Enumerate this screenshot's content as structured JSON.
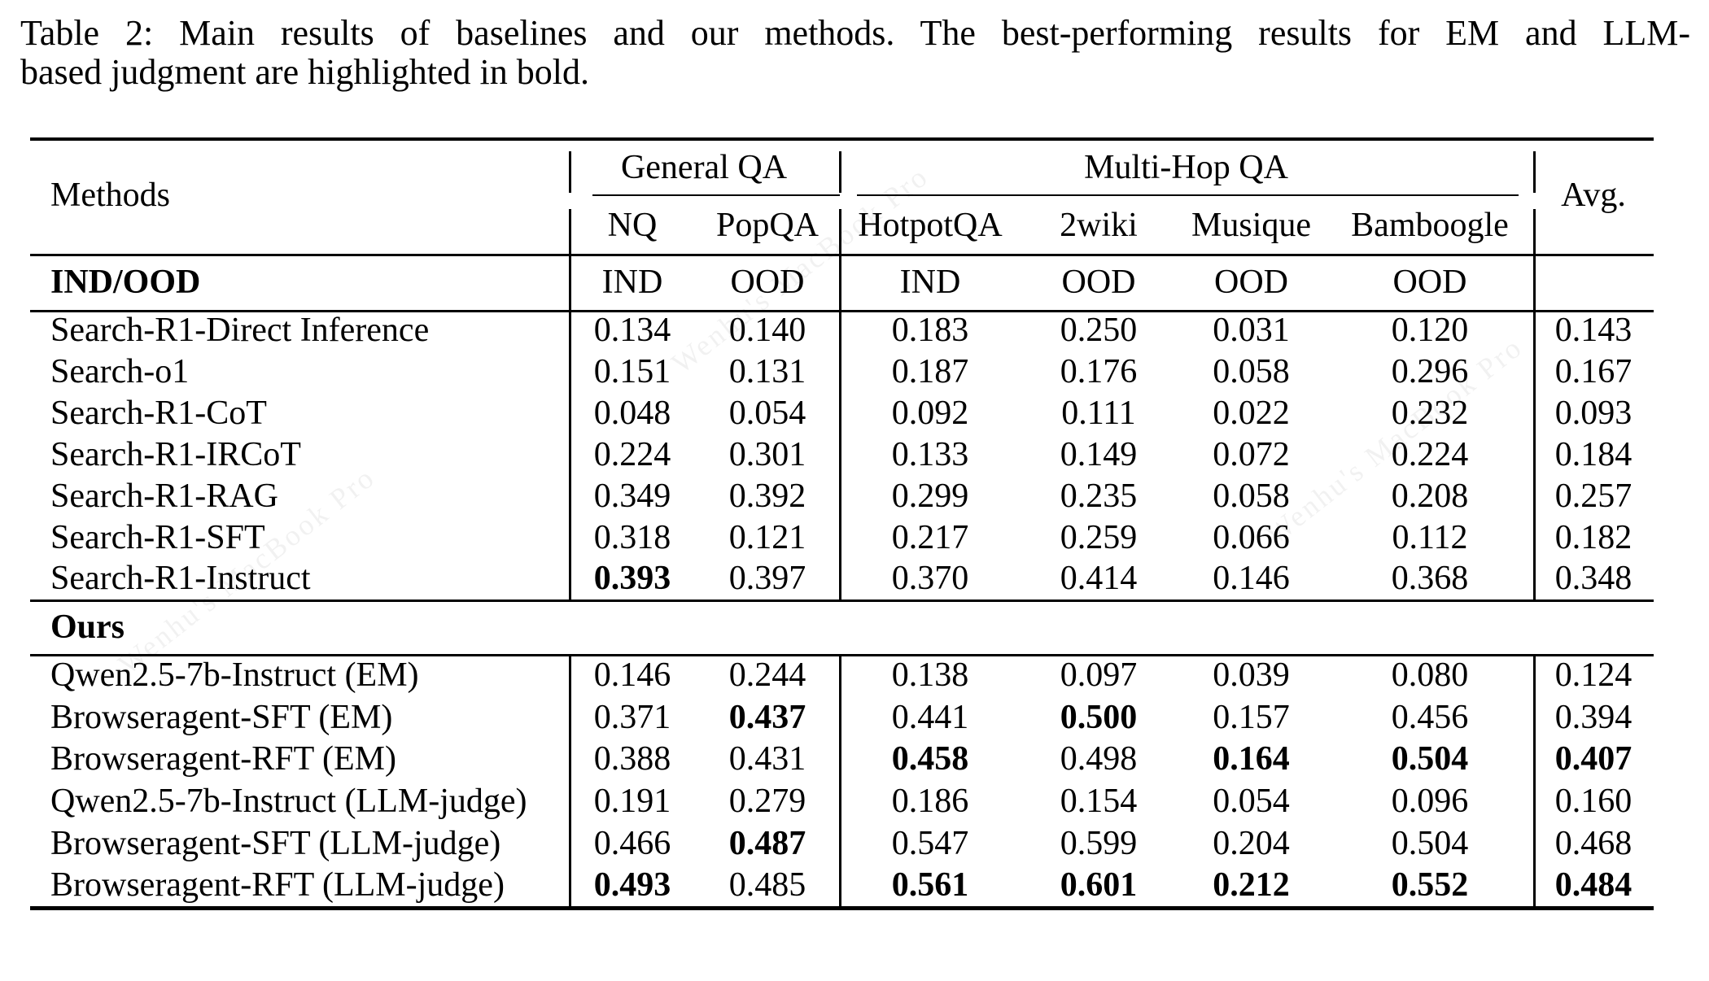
{
  "caption": {
    "line1": "Table 2: Main results of baselines and our methods. The best-performing results for EM and LLM-",
    "line2": "based judgment are highlighted in bold."
  },
  "watermark": "Wenhu's MacBook Pro",
  "table": {
    "methods_header": "Methods",
    "avg_header": "Avg.",
    "groups": [
      {
        "label": "General QA"
      },
      {
        "label": "Multi-Hop QA"
      }
    ],
    "columns": [
      "NQ",
      "PopQA",
      "HotpotQA",
      "2wiki",
      "Musique",
      "Bamboogle"
    ],
    "ind_ood": {
      "label": "IND/OOD",
      "values": [
        "IND",
        "OOD",
        "IND",
        "OOD",
        "OOD",
        "OOD"
      ]
    },
    "sections": [
      {
        "label": "",
        "rows": [
          {
            "method": "Search-R1-Direct Inference",
            "values": [
              "0.134",
              "0.140",
              "0.183",
              "0.250",
              "0.031",
              "0.120",
              "0.143"
            ],
            "bold": []
          },
          {
            "method": "Search-o1",
            "values": [
              "0.151",
              "0.131",
              "0.187",
              "0.176",
              "0.058",
              "0.296",
              "0.167"
            ],
            "bold": []
          },
          {
            "method": "Search-R1-CoT",
            "values": [
              "0.048",
              "0.054",
              "0.092",
              "0.111",
              "0.022",
              "0.232",
              "0.093"
            ],
            "bold": []
          },
          {
            "method": "Search-R1-IRCoT",
            "values": [
              "0.224",
              "0.301",
              "0.133",
              "0.149",
              "0.072",
              "0.224",
              "0.184"
            ],
            "bold": []
          },
          {
            "method": "Search-R1-RAG",
            "values": [
              "0.349",
              "0.392",
              "0.299",
              "0.235",
              "0.058",
              "0.208",
              "0.257"
            ],
            "bold": []
          },
          {
            "method": "Search-R1-SFT",
            "values": [
              "0.318",
              "0.121",
              "0.217",
              "0.259",
              "0.066",
              "0.112",
              "0.182"
            ],
            "bold": []
          },
          {
            "method": "Search-R1-Instruct",
            "values": [
              "0.393",
              "0.397",
              "0.370",
              "0.414",
              "0.146",
              "0.368",
              "0.348"
            ],
            "bold": [
              0
            ]
          }
        ]
      },
      {
        "label": "Ours",
        "rows": [
          {
            "method": "Qwen2.5-7b-Instruct (EM)",
            "values": [
              "0.146",
              "0.244",
              "0.138",
              "0.097",
              "0.039",
              "0.080",
              "0.124"
            ],
            "bold": []
          },
          {
            "method": "Browseragent-SFT (EM)",
            "values": [
              "0.371",
              "0.437",
              "0.441",
              "0.500",
              "0.157",
              "0.456",
              "0.394"
            ],
            "bold": [
              1,
              3
            ]
          },
          {
            "method": "Browseragent-RFT (EM)",
            "values": [
              "0.388",
              "0.431",
              "0.458",
              "0.498",
              "0.164",
              "0.504",
              "0.407"
            ],
            "bold": [
              2,
              4,
              5,
              6
            ]
          },
          {
            "method": "Qwen2.5-7b-Instruct (LLM-judge)",
            "values": [
              "0.191",
              "0.279",
              "0.186",
              "0.154",
              "0.054",
              "0.096",
              "0.160"
            ],
            "bold": []
          },
          {
            "method": "Browseragent-SFT (LLM-judge)",
            "values": [
              "0.466",
              "0.487",
              "0.547",
              "0.599",
              "0.204",
              "0.504",
              "0.468"
            ],
            "bold": [
              1
            ]
          },
          {
            "method": "Browseragent-RFT (LLM-judge)",
            "values": [
              "0.493",
              "0.485",
              "0.561",
              "0.601",
              "0.212",
              "0.552",
              "0.484"
            ],
            "bold": [
              0,
              2,
              3,
              4,
              5,
              6
            ]
          }
        ]
      }
    ]
  }
}
